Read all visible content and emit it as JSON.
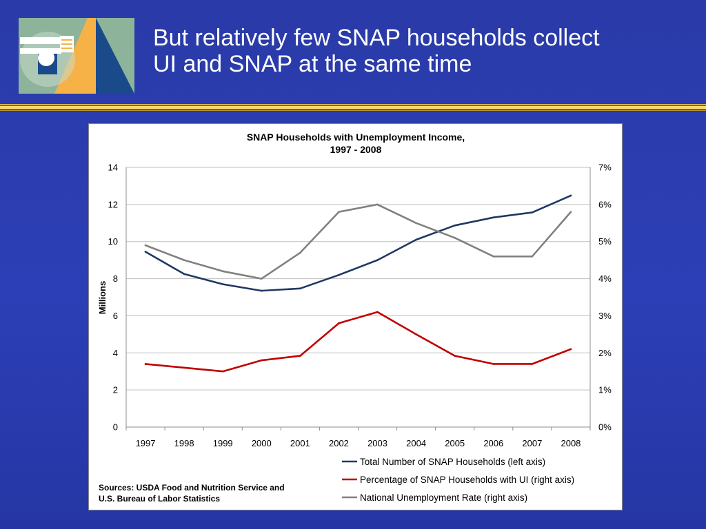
{
  "slide": {
    "title_line1": "But relatively few SNAP households collect",
    "title_line2": "UI and SNAP at the same time"
  },
  "colors": {
    "background": "#2c3db3",
    "series_total": "#1f3864",
    "series_pct": "#c00000",
    "series_unemp": "#808080",
    "logo_green": "#8db39a",
    "logo_orange": "#f6b246",
    "logo_blue": "#1b4a8a",
    "divider_gold": "#f4d97a"
  },
  "chart_data": {
    "type": "line",
    "title_line1": "SNAP Households with Unemployment Income,",
    "title_line2": "1997 - 2008",
    "ylabel": "Millions",
    "categories": [
      "1997",
      "1998",
      "1999",
      "2000",
      "2001",
      "2002",
      "2003",
      "2004",
      "2005",
      "2006",
      "2007",
      "2008"
    ],
    "left_axis": {
      "ylim": [
        0,
        14
      ],
      "ticks": [
        "0",
        "2",
        "4",
        "6",
        "8",
        "10",
        "12",
        "14"
      ]
    },
    "right_axis": {
      "ylim": [
        0,
        7
      ],
      "ticks": [
        "0%",
        "1%",
        "2%",
        "3%",
        "4%",
        "5%",
        "6%",
        "7%"
      ]
    },
    "grid": true,
    "legend_position": "bottom-right",
    "series": [
      {
        "name": "Total Number of SNAP Households (left axis)",
        "axis": "left",
        "color": "#1f3864",
        "values": [
          9.45,
          8.25,
          7.7,
          7.35,
          7.47,
          8.2,
          9.0,
          10.1,
          10.87,
          11.3,
          11.57,
          12.48
        ]
      },
      {
        "name": "Percentage of SNAP Households with UI (right axis)",
        "axis": "right",
        "color": "#c00000",
        "values": [
          1.7,
          1.6,
          1.5,
          1.8,
          1.92,
          2.8,
          3.1,
          2.5,
          1.92,
          1.7,
          1.7,
          2.1
        ]
      },
      {
        "name": "National Unemployment Rate (right axis)",
        "axis": "right",
        "color": "#808080",
        "values": [
          4.9,
          4.5,
          4.2,
          4.0,
          4.7,
          5.8,
          6.0,
          5.5,
          5.1,
          4.6,
          4.6,
          5.8
        ]
      }
    ],
    "source_line1": "Sources: USDA Food and Nutrition Service and",
    "source_line2": "U.S. Bureau of Labor Statistics"
  }
}
